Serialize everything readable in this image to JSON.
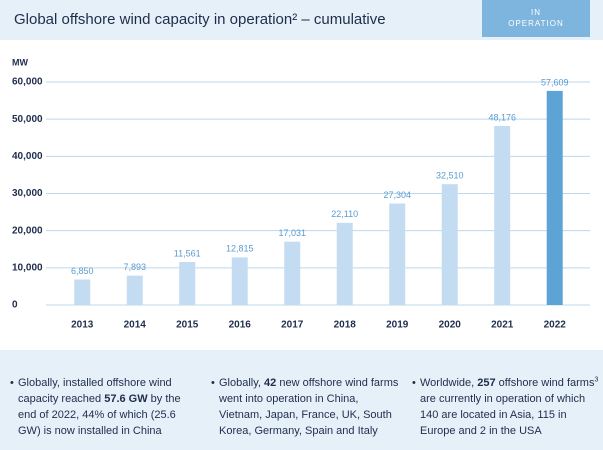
{
  "chart_data": {
    "type": "bar",
    "title": "Global offshore wind capacity in operation² – cumulative",
    "badge": "IN OPERATION",
    "ylabel": "MW",
    "categories": [
      "2013",
      "2014",
      "2015",
      "2016",
      "2017",
      "2018",
      "2019",
      "2020",
      "2021",
      "2022"
    ],
    "values": [
      6850,
      7893,
      11561,
      12815,
      17031,
      22110,
      27304,
      32510,
      48176,
      57609
    ],
    "value_labels": [
      "6,850",
      "7,893",
      "11,561",
      "12,815",
      "17,031",
      "22,110",
      "27,304",
      "32,510",
      "48,176",
      "57,609"
    ],
    "colors": [
      "#c4dcf1",
      "#c4dcf1",
      "#c4dcf1",
      "#c4dcf1",
      "#c4dcf1",
      "#c4dcf1",
      "#c4dcf1",
      "#c4dcf1",
      "#c4dcf1",
      "#5ea3d6"
    ],
    "ylim": [
      0,
      60000
    ],
    "yticks": [
      0,
      {
        "value": 10000,
        "label": "10,000"
      },
      {
        "value": 20000,
        "label": "20,000"
      },
      {
        "value": 30000,
        "label": "30,000"
      },
      {
        "value": 40000,
        "label": "40,000"
      },
      {
        "value": 50000,
        "label": "50,000"
      },
      {
        "value": 60000,
        "label": "60,000"
      }
    ],
    "grid": true
  },
  "notes": [
    {
      "parts": [
        {
          "text": "Globally, installed offshore wind capacity reached "
        },
        {
          "text": "57.6 GW",
          "bold": true
        },
        {
          "text": " by the end of 2022, 44% of which (25.6 GW) is now installed in China"
        }
      ]
    },
    {
      "parts": [
        {
          "text": "Globally, "
        },
        {
          "text": "42",
          "bold": true
        },
        {
          "text": " new offshore wind farms went into operation in China, Vietnam, Japan, France, UK, South Korea, Germany, Spain and Italy"
        }
      ]
    },
    {
      "parts": [
        {
          "text": "Worldwide, "
        },
        {
          "text": "257",
          "bold": true
        },
        {
          "text": " offshore wind farms"
        },
        {
          "text": "3",
          "sup": true
        },
        {
          "text": " are currently in operation of which 140 are located in Asia, 115 in Europe and 2 in the USA"
        }
      ]
    }
  ]
}
